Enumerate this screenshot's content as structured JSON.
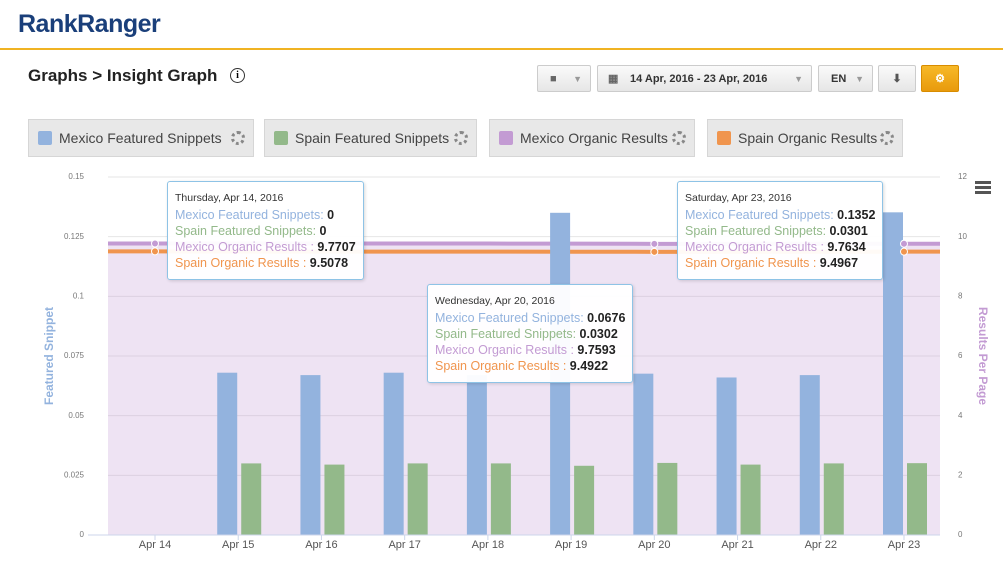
{
  "header": {
    "logo": "RankRanger",
    "breadcrumb": "Graphs > Insight Graph"
  },
  "toolbar": {
    "date_range": "14 Apr, 2016 - 23 Apr, 2016",
    "language": "EN"
  },
  "chart_data": {
    "type": "bar",
    "categories": [
      "Apr 14",
      "Apr 15",
      "Apr 16",
      "Apr 17",
      "Apr 18",
      "Apr 19",
      "Apr 20",
      "Apr 21",
      "Apr 22",
      "Apr 23"
    ],
    "ylabel": "Featured Snippet",
    "y2label": "Results Per Page",
    "ylim": [
      0,
      0.15
    ],
    "yticks": [
      0,
      0.025,
      0.05,
      0.075,
      0.1,
      0.125,
      0.15
    ],
    "y2lim": [
      0,
      12
    ],
    "y2ticks": [
      0,
      2,
      4,
      6,
      8,
      10,
      12
    ],
    "series": [
      {
        "name": "Mexico Featured Snippets",
        "color": "#93b3de",
        "type": "bar",
        "values": [
          0,
          0.068,
          0.067,
          0.068,
          0.067,
          0.135,
          0.0676,
          0.066,
          0.067,
          0.1352
        ]
      },
      {
        "name": "Spain Featured Snippets",
        "color": "#93b98a",
        "type": "bar",
        "values": [
          0,
          0.03,
          0.0295,
          0.03,
          0.03,
          0.029,
          0.0302,
          0.0295,
          0.03,
          0.0301
        ]
      },
      {
        "name": "Mexico Organic Results",
        "color": "#c39bd3",
        "type": "area",
        "axis": "y2",
        "values": [
          9.7707,
          9.77,
          9.77,
          9.77,
          9.77,
          9.765,
          9.7593,
          9.76,
          9.762,
          9.7634
        ]
      },
      {
        "name": "Spain Organic Results",
        "color": "#f0954e",
        "type": "line",
        "axis": "y2",
        "values": [
          9.5078,
          9.5,
          9.5,
          9.5,
          9.5,
          9.495,
          9.4922,
          9.493,
          9.495,
          9.4967
        ]
      }
    ],
    "tooltips": [
      "Thursday, Apr 14, 2016",
      "Wednesday, Apr 20, 2016",
      "Saturday, Apr 23, 2016"
    ]
  }
}
